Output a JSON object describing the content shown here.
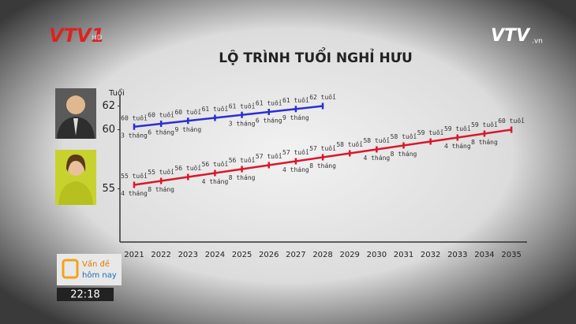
{
  "channel_logo": "VTV1",
  "channel_logo_suffix": "HD",
  "site_logo": "VTV",
  "site_logo_suffix": ".vn",
  "program": {
    "line1": "Vấn đề",
    "line2": "hôm nay"
  },
  "clock": "22:18",
  "chart_data": {
    "type": "line",
    "title": "LỘ TRÌNH TUỔI NGHỈ HƯU",
    "y_label": "Tuổi",
    "categories": [
      "2021",
      "2022",
      "2023",
      "2024",
      "2025",
      "2026",
      "2027",
      "2028",
      "2029",
      "2030",
      "2031",
      "2032",
      "2033",
      "2034",
      "2035"
    ],
    "ylim": [
      50.5,
      62.5
    ],
    "yticks": [
      55,
      60,
      62
    ],
    "grid": false,
    "series": [
      {
        "color": "#2a2fd4",
        "values": [
          60.25,
          60.5,
          60.75,
          61,
          61.25,
          61.5,
          61.75,
          62,
          null,
          null,
          null,
          null,
          null,
          null,
          null
        ],
        "value_labels": [
          [
            "60 tuổi",
            "3 tháng"
          ],
          [
            "60 tuổi",
            "6 tháng"
          ],
          [
            "60 tuổi",
            "9 tháng"
          ],
          [
            "61 tuổi"
          ],
          [
            "61 tuổi",
            "3 tháng"
          ],
          [
            "61 tuổi",
            "6 tháng"
          ],
          [
            "61 tuổi",
            "9 tháng"
          ],
          [
            "62 tuổi"
          ],
          null,
          null,
          null,
          null,
          null,
          null,
          null
        ]
      },
      {
        "color": "#d8182c",
        "values": [
          55.333,
          55.667,
          56,
          56.333,
          56.667,
          57,
          57.333,
          57.667,
          58,
          58.333,
          58.667,
          59,
          59.333,
          59.667,
          60
        ],
        "value_labels": [
          [
            "55 tuổi",
            "4 tháng"
          ],
          [
            "55 tuổi",
            "8 tháng"
          ],
          [
            "56 tuổi"
          ],
          [
            "56 tuổi",
            "4 tháng"
          ],
          [
            "56 tuổi",
            "8 tháng"
          ],
          [
            "57 tuổi"
          ],
          [
            "57 tuổi",
            "4 tháng"
          ],
          [
            "57 tuổi",
            "8 tháng"
          ],
          [
            "58 tuổi"
          ],
          [
            "58 tuổi",
            "4 tháng"
          ],
          [
            "58 tuổi",
            "8 tháng"
          ],
          [
            "59 tuổi"
          ],
          [
            "59 tuổi",
            "4 tháng"
          ],
          [
            "59 tuổi",
            "8 tháng"
          ],
          [
            "60 tuổi"
          ]
        ]
      }
    ]
  }
}
